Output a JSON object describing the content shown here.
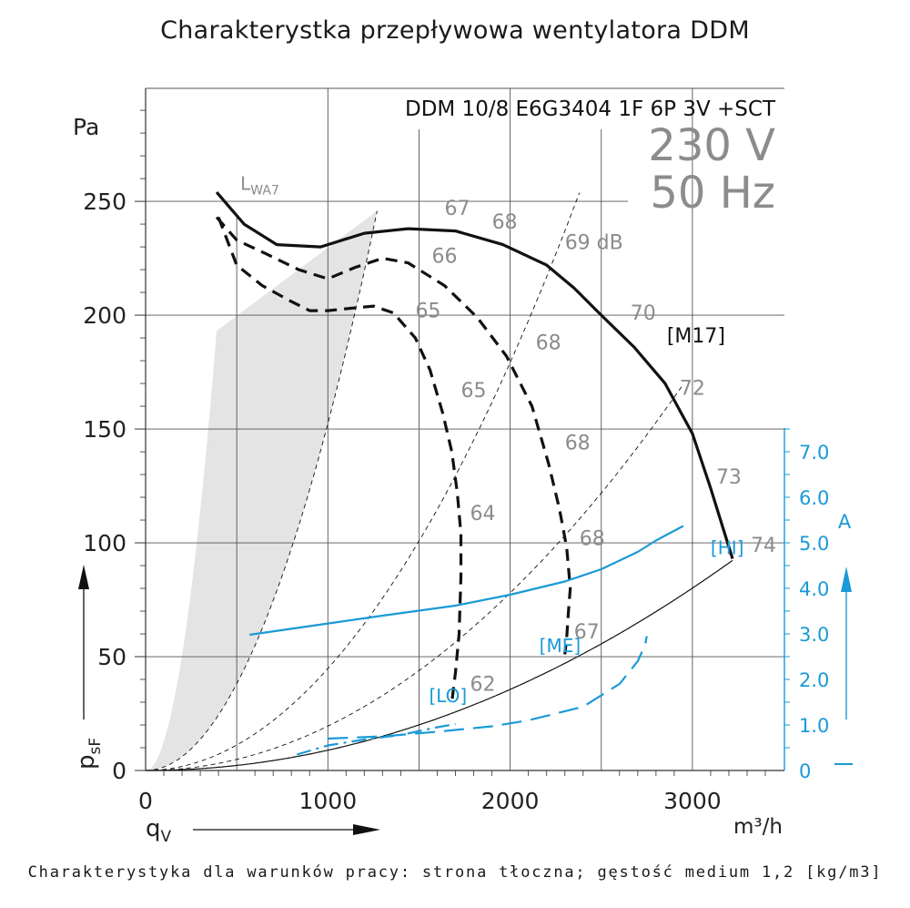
{
  "page": {
    "title": "Charakterystka przepływowa wentylatora DDM",
    "footnote": "Charakterystyka dla warunków pracy: strona tłoczna; gęstość medium 1,2 [kg/m3]"
  },
  "chart_data": {
    "type": "line",
    "model": "DDM 10/8 E6G3404 1F 6P 3V +SCT",
    "voltage": "230 V",
    "frequency": "50 Hz",
    "colors": {
      "pressure": "#111111",
      "current": "#1a9ad6",
      "grid": "#555555",
      "shade": "#e4e4e4",
      "dB": "#8c8c8c"
    },
    "x_axis": {
      "symbol": "q",
      "subscript": "V",
      "unit": "m³/h",
      "range": [
        0,
        3500
      ],
      "ticks": [
        0,
        1000,
        2000,
        3000
      ],
      "tick_labels": [
        "0",
        "1000",
        "2000",
        "3000"
      ]
    },
    "y_axis": {
      "symbol": "p",
      "subscript": "sF",
      "unit": "Pa",
      "range": [
        0,
        300
      ],
      "ticks": [
        0,
        50,
        100,
        150,
        200,
        250
      ],
      "tick_labels": [
        "0",
        "50",
        "100",
        "150",
        "200",
        "250"
      ]
    },
    "y2_axis": {
      "unit": "A",
      "range": [
        0,
        7.5
      ],
      "ticks": [
        0,
        1,
        2,
        3,
        4,
        5,
        6,
        7
      ],
      "tick_labels": [
        "0",
        "1.0",
        "2.0",
        "3.0",
        "4.0",
        "5.0",
        "6.0",
        "7.0"
      ]
    },
    "series": [
      {
        "name": "[M17]",
        "kind": "pressure",
        "style": "solid",
        "x": [
          390,
          540,
          720,
          960,
          1200,
          1440,
          1700,
          1960,
          2200,
          2350,
          2500,
          2680,
          2850,
          3000,
          3100,
          3220
        ],
        "y": [
          254,
          240,
          231,
          230,
          236,
          238,
          237,
          231,
          222,
          212,
          200,
          186,
          170,
          148,
          124,
          93
        ]
      },
      {
        "name": "pressure-medium",
        "kind": "pressure",
        "style": "dashed",
        "x": [
          390,
          500,
          660,
          840,
          1000,
          1150,
          1300,
          1440,
          1640,
          1820,
          1980,
          2120,
          2210,
          2270,
          2310,
          2330,
          2320,
          2310,
          2300
        ],
        "y": [
          243,
          233,
          227,
          220,
          216,
          221,
          225,
          223,
          213,
          199,
          182,
          160,
          135,
          115,
          98,
          80,
          70,
          58,
          51
        ]
      },
      {
        "name": "pressure-low",
        "kind": "pressure",
        "style": "dashed",
        "x": [
          400,
          500,
          640,
          800,
          900,
          1000,
          1120,
          1250,
          1360,
          1480,
          1560,
          1630,
          1680,
          1710,
          1730,
          1730,
          1720,
          1700,
          1680
        ],
        "y": [
          243,
          222,
          213,
          206,
          202,
          202,
          203,
          204,
          201,
          190,
          176,
          157,
          140,
          122,
          104,
          85,
          60,
          43,
          30
        ]
      },
      {
        "name": "current-HI",
        "kind": "current",
        "style": "solid",
        "x": [
          570,
          900,
          1300,
          1700,
          2000,
          2300,
          2500,
          2700,
          2800,
          2950
        ],
        "y": [
          2.98,
          3.17,
          3.4,
          3.62,
          3.86,
          4.15,
          4.42,
          4.8,
          5.05,
          5.37
        ]
      },
      {
        "name": "current-ME",
        "kind": "current",
        "style": "dashed",
        "x": [
          1000,
          1300,
          1600,
          1900,
          2100,
          2400,
          2600,
          2700,
          2740,
          2750
        ],
        "y": [
          0.7,
          0.75,
          0.85,
          0.97,
          1.1,
          1.4,
          1.9,
          2.4,
          2.75,
          2.95
        ]
      },
      {
        "name": "current-LO",
        "kind": "current",
        "style": "dash-dot",
        "x": [
          830,
          1000,
          1200,
          1400,
          1600,
          1700
        ],
        "y": [
          0.35,
          0.55,
          0.68,
          0.78,
          0.95,
          1.02
        ]
      }
    ],
    "system_curves": [
      {
        "k": 0.0001524,
        "to_x": 1270
      },
      {
        "k": 4.48e-05,
        "to_x": 2380
      },
      {
        "k": 1.95e-05,
        "to_x": 2950
      },
      {
        "k": 8.9e-06,
        "to_x": 3220
      }
    ],
    "operating_range_shade": {
      "left_k": 0.00127,
      "left_to_x": 395,
      "right_k": 0.0001524,
      "right_to_x": 1270
    },
    "curve_labels": [
      {
        "text": "[M17]",
        "x": 2860,
        "y": 188,
        "color": "#111111",
        "size": 22
      },
      {
        "text": "[ME]",
        "x": 2160,
        "y": 52,
        "color": "#1a9ad6",
        "size": 20
      },
      {
        "text": "[LO]",
        "x": 1555,
        "y": 30,
        "color": "#1a9ad6",
        "size": 20
      },
      {
        "text": "[HI]",
        "x": 3100,
        "y": 95,
        "color": "#1a9ad6",
        "size": 20
      }
    ],
    "noise_labels": [
      {
        "text": "67",
        "x": 1640,
        "y": 244
      },
      {
        "text": "68",
        "x": 1900,
        "y": 238
      },
      {
        "text": "69 dB",
        "x": 2300,
        "y": 229
      },
      {
        "text": "70",
        "x": 2660,
        "y": 198
      },
      {
        "text": "72",
        "x": 2930,
        "y": 165
      },
      {
        "text": "73",
        "x": 3130,
        "y": 126
      },
      {
        "text": "74",
        "x": 3320,
        "y": 96
      },
      {
        "text": "66",
        "x": 1570,
        "y": 223
      },
      {
        "text": "68",
        "x": 2140,
        "y": 185
      },
      {
        "text": "68",
        "x": 2300,
        "y": 141
      },
      {
        "text": "68",
        "x": 2380,
        "y": 99
      },
      {
        "text": "67",
        "x": 2350,
        "y": 58
      },
      {
        "text": "65",
        "x": 1480,
        "y": 199
      },
      {
        "text": "65",
        "x": 1730,
        "y": 164
      },
      {
        "text": "64",
        "x": 1780,
        "y": 110
      },
      {
        "text": "62",
        "x": 1780,
        "y": 35
      }
    ],
    "sound_level_label": {
      "symbol": "L",
      "subscript": "WA7",
      "x": 520,
      "y": 255
    }
  }
}
